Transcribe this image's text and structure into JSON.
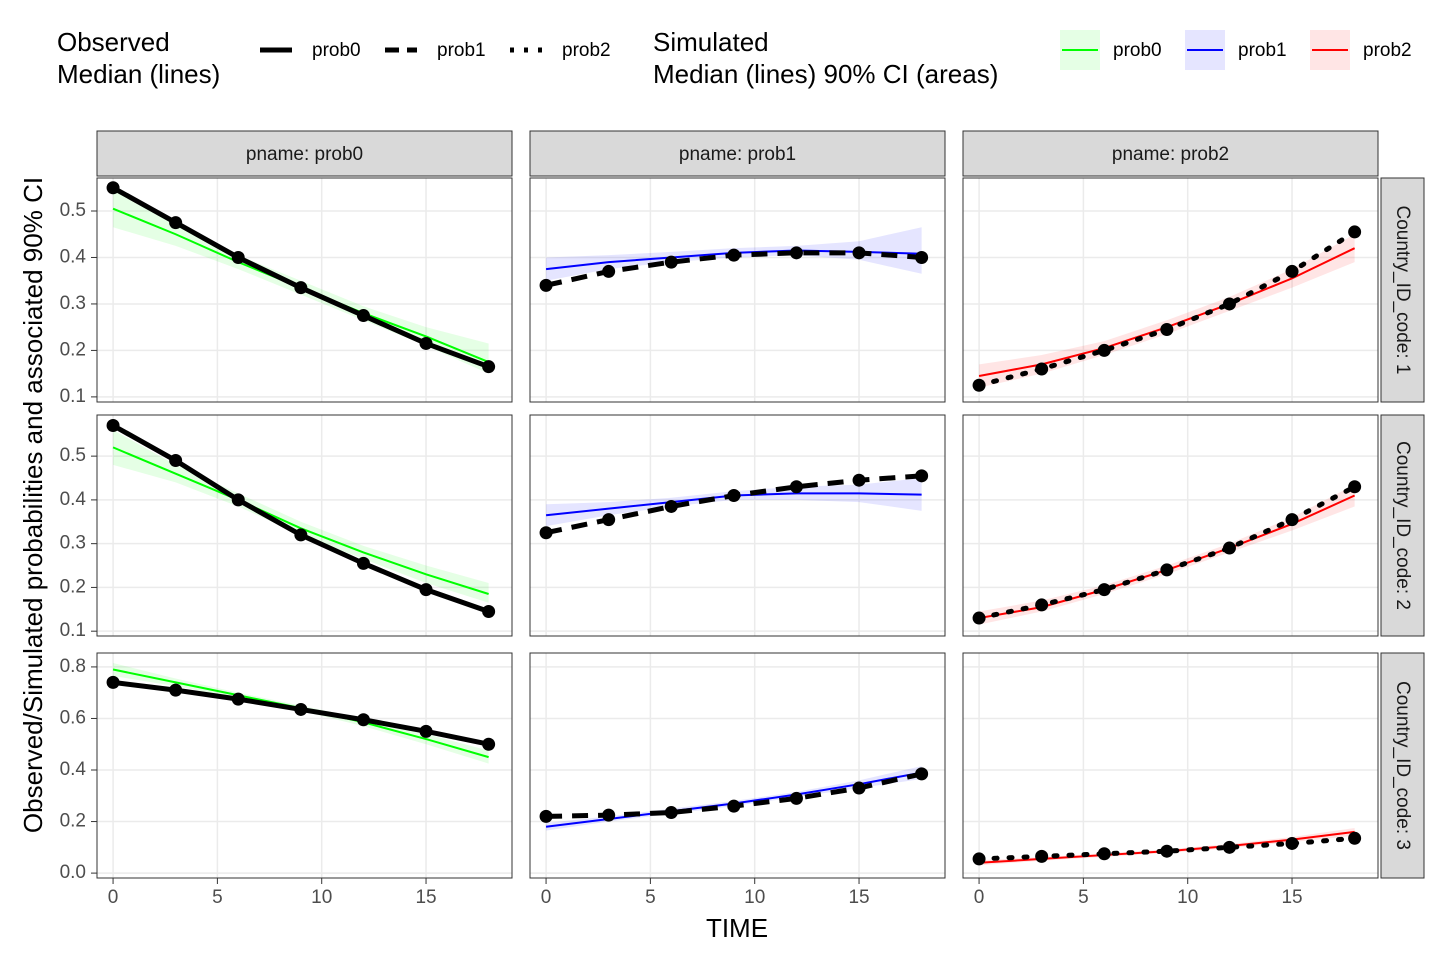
{
  "chart_data": {
    "type": "line",
    "legend": {
      "observed_title": [
        "Observed",
        "Median (lines)"
      ],
      "simulated_title": [
        "Simulated",
        "Median (lines) 90% CI (areas)"
      ]
    },
    "xlabel": "TIME",
    "ylabel": "Observed/Simulated probabilities and associated 90% CI",
    "x": [
      0,
      3,
      6,
      9,
      12,
      15,
      18
    ],
    "xlim": [
      -0.77,
      19.12
    ],
    "xticks": [
      0,
      5,
      10,
      15
    ],
    "grid": true,
    "series": [
      {
        "name": "prob0",
        "color": "#00ff00",
        "dash": "solid"
      },
      {
        "name": "prob1",
        "color": "#0000ff",
        "dash": "dashed"
      },
      {
        "name": "prob2",
        "color": "#ff0000",
        "dash": "dotted"
      }
    ],
    "columns": [
      "pname: prob0",
      "pname: prob1",
      "pname: prob2"
    ],
    "rows": [
      {
        "label": "Country_ID_code: 1",
        "ylim": [
          0.089,
          0.571
        ],
        "yticks": [
          0.1,
          0.2,
          0.3,
          0.4,
          0.5
        ]
      },
      {
        "label": "Country_ID_code: 2",
        "ylim": [
          0.089,
          0.594
        ],
        "yticks": [
          0.1,
          0.2,
          0.3,
          0.4,
          0.5
        ]
      },
      {
        "label": "Country_ID_code: 3",
        "ylim": [
          -0.019,
          0.854
        ],
        "yticks": [
          {
            "value": 0,
            "label": "0.0"
          },
          0.2,
          0.4,
          0.6,
          0.8
        ]
      }
    ],
    "panels": [
      [
        {
          "observed": [
            0.55,
            0.475,
            0.4,
            0.335,
            0.275,
            0.215,
            0.165
          ],
          "simulated": [
            0.505,
            0.45,
            0.39,
            0.335,
            0.28,
            0.23,
            0.175
          ],
          "lower": [
            0.465,
            0.425,
            0.375,
            0.32,
            0.265,
            0.21,
            0.15
          ],
          "upper": [
            0.545,
            0.475,
            0.405,
            0.35,
            0.295,
            0.25,
            0.215
          ]
        },
        {
          "observed": [
            0.34,
            0.37,
            0.39,
            0.405,
            0.41,
            0.41,
            0.4
          ],
          "simulated": [
            0.375,
            0.39,
            0.4,
            0.41,
            0.415,
            0.412,
            0.408
          ],
          "lower": [
            0.35,
            0.375,
            0.39,
            0.4,
            0.405,
            0.395,
            0.365
          ],
          "upper": [
            0.4,
            0.405,
            0.412,
            0.42,
            0.425,
            0.435,
            0.465
          ]
        },
        {
          "observed": [
            0.125,
            0.16,
            0.2,
            0.245,
            0.3,
            0.37,
            0.455
          ],
          "simulated": [
            0.145,
            0.17,
            0.205,
            0.25,
            0.3,
            0.355,
            0.42
          ],
          "lower": [
            0.12,
            0.15,
            0.19,
            0.235,
            0.285,
            0.335,
            0.39
          ],
          "upper": [
            0.17,
            0.19,
            0.22,
            0.265,
            0.315,
            0.375,
            0.45
          ]
        }
      ],
      [
        {
          "observed": [
            0.57,
            0.49,
            0.4,
            0.32,
            0.255,
            0.195,
            0.145
          ],
          "simulated": [
            0.52,
            0.46,
            0.4,
            0.335,
            0.28,
            0.23,
            0.185
          ],
          "lower": [
            0.48,
            0.44,
            0.385,
            0.32,
            0.265,
            0.21,
            0.165
          ],
          "upper": [
            0.56,
            0.48,
            0.415,
            0.35,
            0.295,
            0.25,
            0.21
          ]
        },
        {
          "observed": [
            0.325,
            0.355,
            0.385,
            0.41,
            0.43,
            0.445,
            0.455
          ],
          "simulated": [
            0.365,
            0.38,
            0.395,
            0.41,
            0.415,
            0.415,
            0.412
          ],
          "lower": [
            0.34,
            0.365,
            0.385,
            0.4,
            0.4,
            0.395,
            0.375
          ],
          "upper": [
            0.39,
            0.395,
            0.405,
            0.42,
            0.43,
            0.435,
            0.45
          ]
        },
        {
          "observed": [
            0.13,
            0.16,
            0.195,
            0.24,
            0.29,
            0.355,
            0.43
          ],
          "simulated": [
            0.13,
            0.155,
            0.195,
            0.24,
            0.29,
            0.345,
            0.41
          ],
          "lower": [
            0.115,
            0.145,
            0.185,
            0.23,
            0.28,
            0.33,
            0.385
          ],
          "upper": [
            0.145,
            0.17,
            0.205,
            0.25,
            0.3,
            0.36,
            0.435
          ]
        }
      ],
      [
        {
          "observed": [
            0.74,
            0.71,
            0.675,
            0.635,
            0.595,
            0.55,
            0.5
          ],
          "simulated": [
            0.79,
            0.74,
            0.69,
            0.64,
            0.585,
            0.52,
            0.45
          ],
          "lower": [
            0.765,
            0.725,
            0.68,
            0.63,
            0.57,
            0.5,
            0.425
          ],
          "upper": [
            0.815,
            0.755,
            0.7,
            0.65,
            0.6,
            0.54,
            0.475
          ]
        },
        {
          "observed": [
            0.22,
            0.225,
            0.235,
            0.26,
            0.29,
            0.33,
            0.385
          ],
          "simulated": [
            0.18,
            0.21,
            0.24,
            0.27,
            0.305,
            0.345,
            0.39
          ],
          "lower": [
            0.165,
            0.2,
            0.23,
            0.26,
            0.295,
            0.33,
            0.365
          ],
          "upper": [
            0.195,
            0.22,
            0.25,
            0.28,
            0.315,
            0.36,
            0.415
          ]
        },
        {
          "observed": [
            0.055,
            0.065,
            0.075,
            0.085,
            0.1,
            0.115,
            0.135
          ],
          "simulated": [
            0.04,
            0.055,
            0.07,
            0.085,
            0.105,
            0.13,
            0.16
          ],
          "lower": [
            0.03,
            0.048,
            0.063,
            0.078,
            0.097,
            0.12,
            0.145
          ],
          "upper": [
            0.05,
            0.062,
            0.077,
            0.092,
            0.113,
            0.14,
            0.175
          ]
        }
      ]
    ]
  }
}
